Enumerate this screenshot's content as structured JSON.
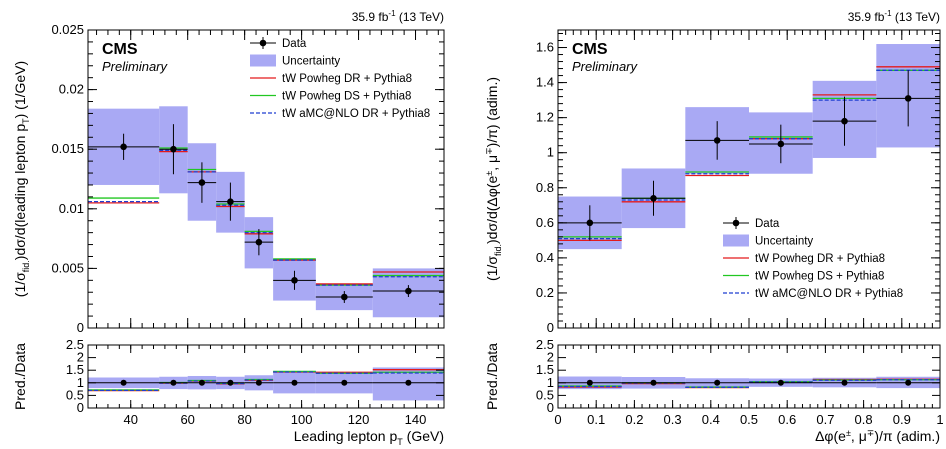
{
  "chart_data": [
    {
      "type": "histogram",
      "panel": "left",
      "header": {
        "lumi": "35.9 fb",
        "lumi_sup": "-1",
        "energy": "(13 TeV)"
      },
      "cms_label": "CMS",
      "cms_sublabel": "Preliminary",
      "ylabel": "(1/σ",
      "ylabel_sub": "fid.",
      "ylabel_rest": ")dσ/d(leading lepton p",
      "ylabel_rest_sub": "T",
      "ylabel_end": ") (1/GeV)",
      "xlabel": "Leading lepton p",
      "xlabel_sub": "T",
      "xlabel_end": " (GeV)",
      "ratio_ylabel": "Pred./Data",
      "xlim": [
        25,
        150
      ],
      "ylim": [
        0,
        0.025
      ],
      "ratio_ylim": [
        0,
        2.5
      ],
      "x_ticks": [
        "40",
        "60",
        "80",
        "100",
        "120",
        "140"
      ],
      "y_ticks": [
        "0",
        "0.005",
        "0.01",
        "0.015",
        "0.02",
        "0.025"
      ],
      "ratio_y_ticks": [
        "0",
        "0.5",
        "1",
        "1.5",
        "2",
        "2.5"
      ],
      "bins": [
        [
          25,
          50
        ],
        [
          50,
          60
        ],
        [
          60,
          70
        ],
        [
          70,
          80
        ],
        [
          80,
          90
        ],
        [
          90,
          105
        ],
        [
          105,
          125
        ],
        [
          125,
          150
        ]
      ],
      "legend": {
        "position": "top-right",
        "entries": [
          "Data",
          "Uncertainty",
          "tW Powheg DR + Pythia8",
          "tW Powheg DS + Pythia8",
          "tW aMC@NLO DR + Pythia8"
        ]
      },
      "data": {
        "x": [
          37.5,
          55,
          65,
          75,
          85,
          97.5,
          115,
          137.5
        ],
        "y": [
          0.0152,
          0.015,
          0.0122,
          0.0106,
          0.0072,
          0.004,
          0.0026,
          0.0031
        ],
        "err": [
          0.0011,
          0.0021,
          0.0017,
          0.0016,
          0.0011,
          0.0008,
          0.0005,
          0.0005
        ]
      },
      "uncertainty": {
        "low": [
          0.012,
          0.0113,
          0.009,
          0.008,
          0.005,
          0.0023,
          0.0015,
          0.0009
        ],
        "high": [
          0.0184,
          0.0186,
          0.0155,
          0.0131,
          0.0093,
          0.0057,
          0.0037,
          0.005
        ]
      },
      "series": [
        {
          "name": "tW Powheg DR + Pythia8",
          "color": "#e41a1c",
          "values": [
            0.0105,
            0.0148,
            0.0131,
            0.0102,
            0.0079,
            0.0057,
            0.0037,
            0.0047
          ]
        },
        {
          "name": "tW Powheg DS + Pythia8",
          "color": "#22c722",
          "values": [
            0.0109,
            0.0151,
            0.0133,
            0.0104,
            0.0081,
            0.0058,
            0.0036,
            0.0044
          ]
        },
        {
          "name": "tW aMC@NLO DR + Pythia8",
          "color": "#1f3fd1",
          "values": [
            0.0106,
            0.0149,
            0.0131,
            0.0103,
            0.008,
            0.0057,
            0.0036,
            0.0043
          ]
        }
      ],
      "ratio": {
        "unc_low": [
          0.79,
          0.75,
          0.74,
          0.75,
          0.7,
          0.58,
          0.58,
          0.3
        ],
        "unc_high": [
          1.21,
          1.24,
          1.27,
          1.24,
          1.3,
          1.43,
          1.42,
          1.61
        ],
        "series": [
          [
            0.69,
            0.99,
            1.07,
            0.96,
            1.1,
            1.43,
            1.42,
            1.52
          ],
          [
            0.72,
            1.01,
            1.09,
            0.98,
            1.13,
            1.45,
            1.38,
            1.42
          ],
          [
            0.7,
            0.99,
            1.07,
            0.97,
            1.11,
            1.43,
            1.38,
            1.39
          ]
        ]
      }
    },
    {
      "type": "histogram",
      "panel": "right",
      "header": {
        "lumi": "35.9 fb",
        "lumi_sup": "-1",
        "energy": "(13 TeV)"
      },
      "cms_label": "CMS",
      "cms_sublabel": "Preliminary",
      "ylabel": "(1/σ",
      "ylabel_sub": "fid.",
      "ylabel_rest": ")dσ/d(Δφ(e",
      "ylabel_rest_sup": "±",
      "ylabel_mid": ", μ",
      "ylabel_mid_sup": "∓",
      "ylabel_end": ")/π) (adim.)",
      "xlabel": "Δφ(e",
      "xlabel_sup": "±",
      "xlabel_mid": ", μ",
      "xlabel_mid_sup": "∓",
      "xlabel_end": ")/π (adim.)",
      "ratio_ylabel": "Pred./Data",
      "xlim": [
        0,
        1
      ],
      "ylim": [
        0,
        1.7
      ],
      "ratio_ylim": [
        0,
        2.5
      ],
      "x_ticks": [
        "0",
        "0.1",
        "0.2",
        "0.3",
        "0.4",
        "0.5",
        "0.6",
        "0.7",
        "0.8",
        "0.9",
        "1"
      ],
      "y_ticks": [
        "0",
        "0.2",
        "0.4",
        "0.6",
        "0.8",
        "1",
        "1.2",
        "1.4",
        "1.6"
      ],
      "ratio_y_ticks": [
        "0",
        "0.5",
        "1",
        "1.5",
        "2",
        "2.5"
      ],
      "bins": [
        [
          0,
          0.1667
        ],
        [
          0.1667,
          0.3333
        ],
        [
          0.3333,
          0.5
        ],
        [
          0.5,
          0.6667
        ],
        [
          0.6667,
          0.8333
        ],
        [
          0.8333,
          1
        ]
      ],
      "legend": {
        "position": "bottom-right",
        "entries": [
          "Data",
          "Uncertainty",
          "tW Powheg DR + Pythia8",
          "tW Powheg DS + Pythia8",
          "tW aMC@NLO DR + Pythia8"
        ]
      },
      "data": {
        "x": [
          0.0833,
          0.25,
          0.4167,
          0.5833,
          0.75,
          0.9167
        ],
        "y": [
          0.6,
          0.74,
          1.07,
          1.05,
          1.18,
          1.31
        ],
        "err": [
          0.1,
          0.1,
          0.11,
          0.11,
          0.14,
          0.16
        ]
      },
      "uncertainty": {
        "low": [
          0.45,
          0.57,
          0.88,
          0.88,
          0.97,
          1.03
        ],
        "high": [
          0.75,
          0.91,
          1.26,
          1.23,
          1.41,
          1.62
        ]
      },
      "series": [
        {
          "name": "tW Powheg DR + Pythia8",
          "color": "#e41a1c",
          "values": [
            0.5,
            0.72,
            0.87,
            1.08,
            1.33,
            1.49
          ]
        },
        {
          "name": "tW Powheg DS + Pythia8",
          "color": "#22c722",
          "values": [
            0.52,
            0.74,
            0.89,
            1.09,
            1.31,
            1.47
          ]
        },
        {
          "name": "tW aMC@NLO DR + Pythia8",
          "color": "#1f3fd1",
          "values": [
            0.51,
            0.73,
            0.88,
            1.08,
            1.3,
            1.47
          ]
        }
      ],
      "ratio": {
        "unc_low": [
          0.75,
          0.77,
          0.82,
          0.84,
          0.82,
          0.79
        ],
        "unc_high": [
          1.25,
          1.23,
          1.18,
          1.17,
          1.2,
          1.24
        ],
        "series": [
          [
            0.83,
            0.97,
            0.81,
            1.03,
            1.13,
            1.14
          ],
          [
            0.87,
            1.0,
            0.83,
            1.04,
            1.11,
            1.12
          ],
          [
            0.85,
            0.99,
            0.82,
            1.03,
            1.1,
            1.12
          ]
        ]
      }
    }
  ]
}
